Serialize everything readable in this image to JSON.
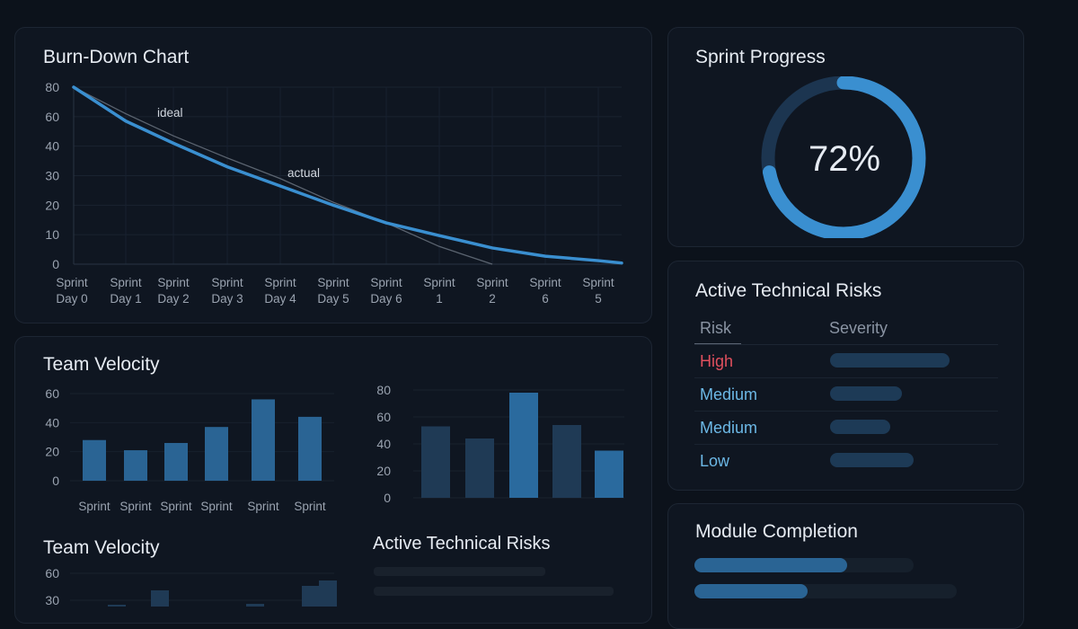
{
  "burndown": {
    "title": "Burn-Down Chart",
    "label_ideal": "ideal",
    "label_actual": "actual"
  },
  "velocity": {
    "title": "Team Velocity",
    "title2": "Team Velocity",
    "risks_title": "Active Technical Risks"
  },
  "progress": {
    "title": "Sprint Progress",
    "value_label": "72%",
    "percent": 72
  },
  "risks": {
    "title": "Active Technical Risks",
    "col_risk": "Risk",
    "col_severity": "Severity",
    "rows": [
      {
        "risk": "High",
        "color": "#e0505e",
        "severity": 0.7
      },
      {
        "risk": "Medium",
        "color": "#6cb8e6",
        "severity": 0.42
      },
      {
        "risk": "Medium",
        "color": "#6cb8e6",
        "severity": 0.35
      },
      {
        "risk": "Low",
        "color": "#6cb8e6",
        "severity": 0.49
      }
    ]
  },
  "modules": {
    "title": "Module Completion",
    "bars": [
      0.7,
      0.43
    ]
  },
  "colors": {
    "accent": "#3a8fd0",
    "bar": "#2a6494",
    "bar_dark": "#1e3a56",
    "bg": "#0c121b"
  },
  "chart_data": [
    {
      "type": "line",
      "title": "Burn-Down Chart",
      "categories": [
        [
          "Sprint",
          "Day 0"
        ],
        [
          "Sprint",
          "Day 1"
        ],
        [
          "Sprint",
          "Day 2"
        ],
        [
          "Sprint",
          "Day 3"
        ],
        [
          "Sprint",
          "Day 4"
        ],
        [
          "Sprint",
          "Day 5"
        ],
        [
          "Sprint",
          "Day 6"
        ],
        [
          "Sprint",
          "1"
        ],
        [
          "Sprint",
          "2"
        ],
        [
          "Sprint",
          "6"
        ],
        [
          "Sprint",
          "5"
        ]
      ],
      "yticks": [
        80,
        60,
        40,
        30,
        20,
        10,
        0
      ],
      "grid": true,
      "series": [
        {
          "name": "ideal",
          "values": [
            80,
            62,
            47,
            36,
            29,
            21,
            14,
            6,
            0,
            null,
            null
          ]
        },
        {
          "name": "actual",
          "values": [
            80,
            57,
            42,
            33,
            26.5,
            20,
            14,
            9.7,
            5.5,
            2.7,
            1.2
          ]
        }
      ]
    },
    {
      "type": "bar",
      "title": "Team Velocity",
      "categories": [
        "Sprint",
        "Sprint",
        "Sprint",
        "Sprint",
        "Sprint",
        "Sprint"
      ],
      "values": [
        28,
        21,
        26,
        37,
        56,
        44
      ],
      "yticks": [
        60,
        40,
        20,
        0
      ],
      "ylim": [
        0,
        60
      ]
    },
    {
      "type": "bar",
      "categories": [
        "",
        "",
        "",
        "",
        ""
      ],
      "values": [
        53,
        44,
        78,
        54,
        35
      ],
      "highlight": [
        false,
        false,
        true,
        false,
        true
      ],
      "yticks": [
        80,
        60,
        40,
        20,
        0
      ],
      "ylim": [
        0,
        80
      ]
    },
    {
      "type": "bar",
      "title": "Team Velocity",
      "values": [
        25,
        41,
        0,
        26,
        46,
        52
      ],
      "yticks": [
        60,
        30
      ],
      "ylim": [
        0,
        60
      ]
    }
  ]
}
